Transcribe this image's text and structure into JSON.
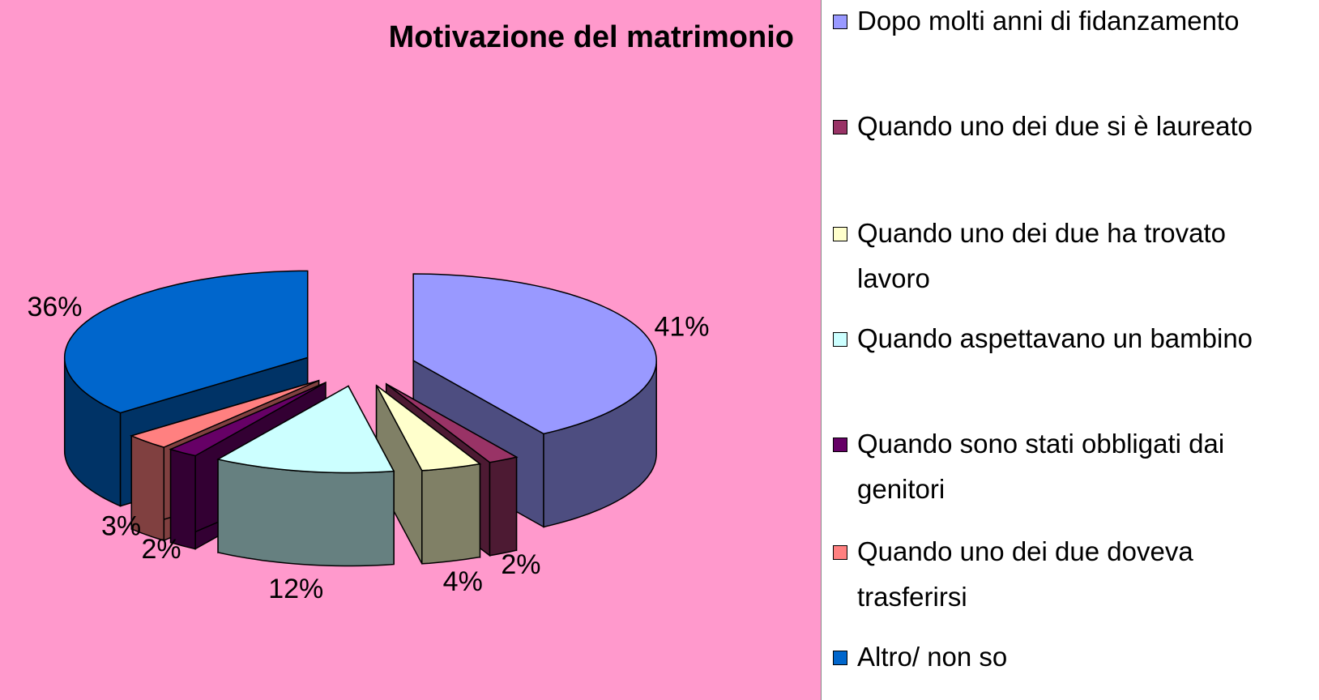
{
  "chart_data": {
    "type": "pie3d",
    "title": "Motivazione del matrimonio",
    "categories": [
      "Dopo molti anni di fidanzamento",
      "Quando uno dei due si è laureato",
      "Quando uno dei due ha trovato lavoro",
      "Quando aspettavano un bambino",
      "Quando sono stati obbligati dai genitori",
      "Quando uno dei due doveva trasferirsi",
      "Altro/ non so"
    ],
    "values": [
      41,
      2,
      4,
      12,
      2,
      3,
      36
    ],
    "value_labels": [
      "41%",
      "2%",
      "4%",
      "12%",
      "2%",
      "3%",
      "36%"
    ],
    "colors": [
      "#9999ff",
      "#993366",
      "#ffffcc",
      "#ccffff",
      "#660066",
      "#ff8080",
      "#0066cc"
    ]
  }
}
